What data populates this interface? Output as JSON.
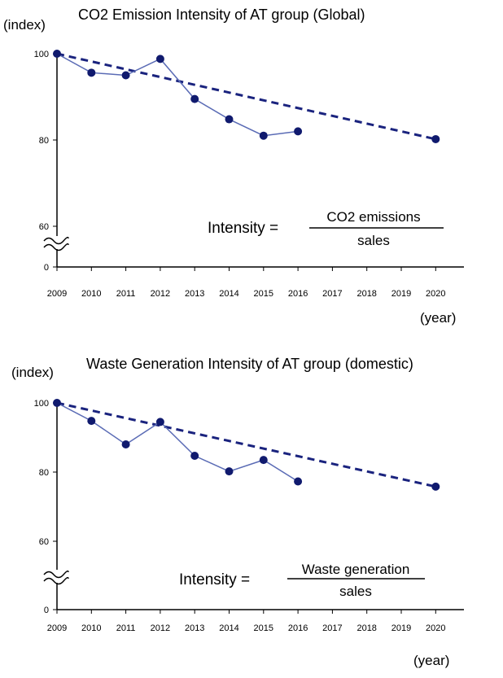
{
  "chart_data": [
    {
      "type": "line",
      "title": "CO2 Emission Intensity of AT group (Global)",
      "ylabel": "(index)",
      "xlabel": "(year)",
      "categories": [
        "2009",
        "2010",
        "2011",
        "2012",
        "2013",
        "2014",
        "2015",
        "2016",
        "2017",
        "2018",
        "2019",
        "2020"
      ],
      "yticks": [
        "100",
        "80",
        "60",
        "0"
      ],
      "axis_break": true,
      "ylim": [
        60,
        100
      ],
      "series": [
        {
          "style": "solid-line-markers",
          "x": [
            2009,
            2010,
            2011,
            2012,
            2013,
            2014,
            2015,
            2016
          ],
          "y": [
            100,
            95.6,
            95,
            98.8,
            89.5,
            84.8,
            81,
            82
          ]
        },
        {
          "style": "dashed-target",
          "x": [
            2009,
            2020
          ],
          "y": [
            100,
            80.2
          ]
        }
      ],
      "formula": {
        "lhs": "Intensity =",
        "numerator": "CO2 emissions",
        "denominator": "sales"
      },
      "colors": {
        "line": "#5a6bb5",
        "marker": "#101a6e",
        "target": "#1a237e"
      }
    },
    {
      "type": "line",
      "title": "Waste Generation Intensity of AT group (domestic)",
      "ylabel": "(index)",
      "xlabel": "(year)",
      "categories": [
        "2009",
        "2010",
        "2011",
        "2012",
        "2013",
        "2014",
        "2015",
        "2016",
        "2017",
        "2018",
        "2019",
        "2020"
      ],
      "yticks": [
        "100",
        "80",
        "60",
        "0"
      ],
      "axis_break": true,
      "ylim": [
        60,
        100
      ],
      "series": [
        {
          "style": "solid-line-markers",
          "x": [
            2009,
            2010,
            2011,
            2012,
            2013,
            2014,
            2015,
            2016
          ],
          "y": [
            100,
            94.8,
            88,
            94.5,
            84.7,
            80.2,
            83.5,
            77.3
          ]
        },
        {
          "style": "dashed-target",
          "x": [
            2009,
            2020
          ],
          "y": [
            100,
            75.8
          ]
        }
      ],
      "formula": {
        "lhs": "Intensity =",
        "numerator": "Waste generation",
        "denominator": "sales"
      },
      "colors": {
        "line": "#5a6bb5",
        "marker": "#101a6e",
        "target": "#1a237e"
      }
    }
  ]
}
